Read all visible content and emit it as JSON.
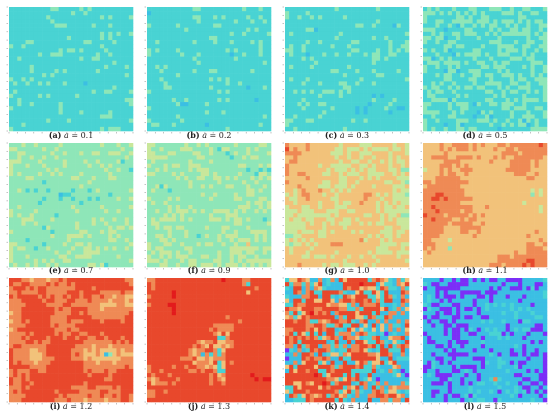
{
  "figure": {
    "panels": [
      {
        "label": "(a)",
        "a_symbol": "a",
        "eq": "=",
        "value": "0.1"
      },
      {
        "label": "(b)",
        "a_symbol": "a",
        "eq": "=",
        "value": "0.2"
      },
      {
        "label": "(c)",
        "a_symbol": "a",
        "eq": "=",
        "value": "0.3"
      },
      {
        "label": "(d)",
        "a_symbol": "a",
        "eq": "=",
        "value": "0.5"
      },
      {
        "label": "(e)",
        "a_symbol": "a",
        "eq": "=",
        "value": "0.7"
      },
      {
        "label": "(f)",
        "a_symbol": "a",
        "eq": "=",
        "value": "0.9"
      },
      {
        "label": "(g)",
        "a_symbol": "a",
        "eq": "=",
        "value": "1.0"
      },
      {
        "label": "(h)",
        "a_symbol": "a",
        "eq": "=",
        "value": "1.1"
      },
      {
        "label": "(i)",
        "a_symbol": "a",
        "eq": "=",
        "value": "1.2"
      },
      {
        "label": "(j)",
        "a_symbol": "a",
        "eq": "=",
        "value": "1.3"
      },
      {
        "label": "(k)",
        "a_symbol": "a",
        "eq": "=",
        "value": "1.4"
      },
      {
        "label": "(l)",
        "a_symbol": "a",
        "eq": "=",
        "value": "1.5"
      }
    ]
  },
  "chart_data": {
    "type": "heatmap",
    "grid_size": 30,
    "colormap": [
      "#7b2ff7",
      "#3bbfe3",
      "#49d3d3",
      "#8ee6b8",
      "#c9e79b",
      "#f2c27a",
      "#ef8a55",
      "#e8482c",
      "#e31a1c"
    ],
    "panels": [
      {
        "a": 0.1,
        "mix": [
          0.0,
          0.05,
          0.8,
          0.15,
          0.0,
          0.0,
          0.0,
          0.0,
          0.0
        ],
        "blob": 0.15
      },
      {
        "a": 0.2,
        "mix": [
          0.0,
          0.06,
          0.78,
          0.16,
          0.0,
          0.0,
          0.0,
          0.0,
          0.0
        ],
        "blob": 0.15
      },
      {
        "a": 0.3,
        "mix": [
          0.0,
          0.1,
          0.7,
          0.2,
          0.0,
          0.0,
          0.0,
          0.0,
          0.0
        ],
        "blob": 0.2
      },
      {
        "a": 0.5,
        "mix": [
          0.0,
          0.12,
          0.48,
          0.38,
          0.02,
          0.0,
          0.0,
          0.0,
          0.0
        ],
        "blob": 0.25
      },
      {
        "a": 0.7,
        "mix": [
          0.0,
          0.05,
          0.1,
          0.55,
          0.28,
          0.02,
          0.0,
          0.0,
          0.0
        ],
        "blob": 0.35
      },
      {
        "a": 0.9,
        "mix": [
          0.01,
          0.05,
          0.08,
          0.45,
          0.32,
          0.08,
          0.01,
          0.0,
          0.0
        ],
        "blob": 0.4
      },
      {
        "a": 1.0,
        "mix": [
          0.0,
          0.03,
          0.04,
          0.1,
          0.25,
          0.38,
          0.15,
          0.05,
          0.0
        ],
        "blob": 0.6
      },
      {
        "a": 1.1,
        "mix": [
          0.0,
          0.02,
          0.03,
          0.03,
          0.05,
          0.4,
          0.3,
          0.12,
          0.05
        ],
        "blob": 0.7
      },
      {
        "a": 1.2,
        "mix": [
          0.0,
          0.04,
          0.04,
          0.02,
          0.0,
          0.15,
          0.25,
          0.4,
          0.1
        ],
        "blob": 0.75
      },
      {
        "a": 1.3,
        "mix": [
          0.0,
          0.06,
          0.06,
          0.0,
          0.0,
          0.06,
          0.1,
          0.55,
          0.17
        ],
        "blob": 0.75
      },
      {
        "a": 1.4,
        "mix": [
          0.12,
          0.25,
          0.1,
          0.0,
          0.0,
          0.05,
          0.1,
          0.3,
          0.08
        ],
        "blob": 0.5
      },
      {
        "a": 1.5,
        "mix": [
          0.38,
          0.4,
          0.14,
          0.0,
          0.0,
          0.02,
          0.02,
          0.03,
          0.01
        ],
        "blob": 0.4
      }
    ]
  }
}
